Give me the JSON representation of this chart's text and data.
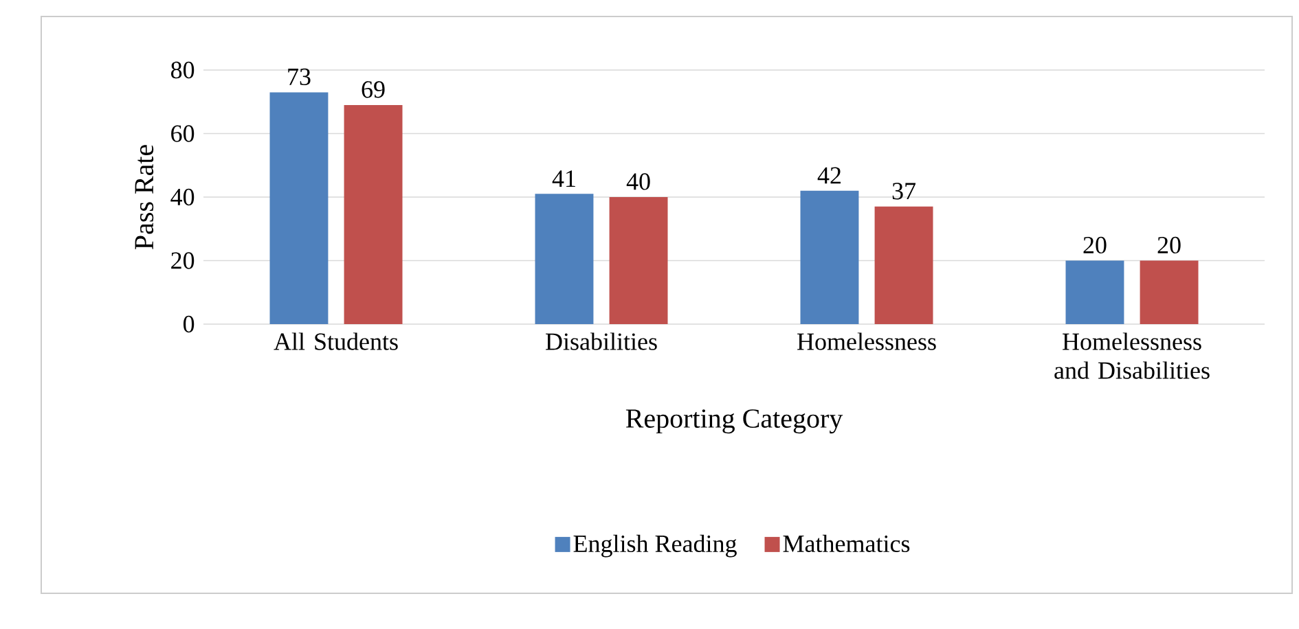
{
  "chart_data": {
    "type": "bar",
    "xlabel": "Reporting Category",
    "ylabel": "Pass Rate",
    "categories": [
      "All Students",
      "Disabilities",
      "Homelessness",
      "Homelessness and Disabilities"
    ],
    "series": [
      {
        "name": "English Reading",
        "color": "#4f81bd",
        "values": [
          73,
          41,
          42,
          20
        ]
      },
      {
        "name": "Mathematics",
        "color": "#c0504d",
        "values": [
          69,
          40,
          37,
          20
        ]
      }
    ],
    "ylim": [
      0,
      80
    ],
    "yticks": [
      0,
      20,
      40,
      60,
      80
    ],
    "grid": "y",
    "legend": "bottom",
    "data_labels": true
  }
}
